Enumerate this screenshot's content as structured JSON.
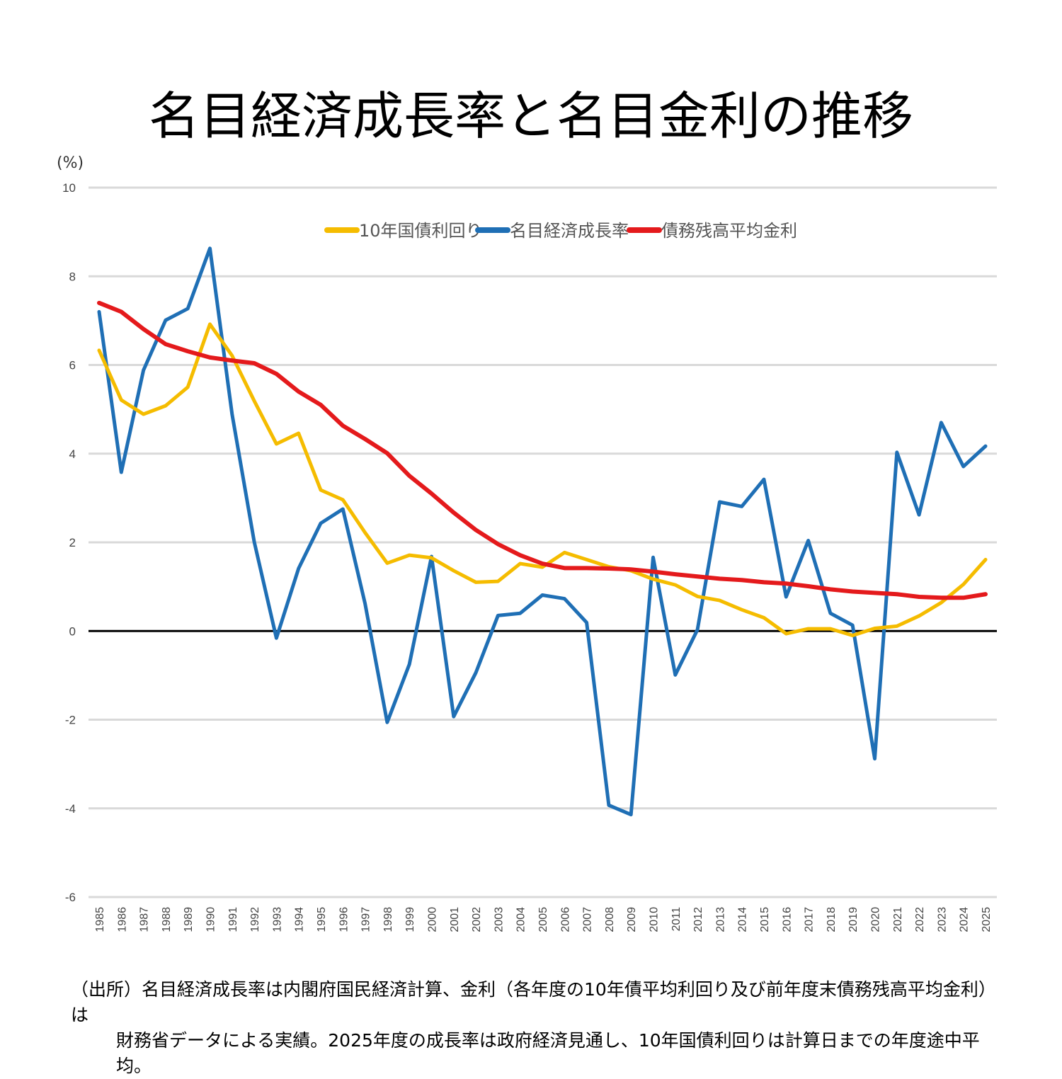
{
  "chart_data": {
    "type": "line",
    "title": "名目経済成長率と名目金利の推移",
    "ylabel": "(%)",
    "ylim": [
      -6,
      10
    ],
    "yticks": [
      10,
      8,
      6,
      4,
      2,
      0,
      -2,
      -4,
      -6
    ],
    "ytick_labels": [
      "10",
      "8",
      "6",
      "4",
      "2",
      "0",
      "-2",
      "-4",
      "-6"
    ],
    "grid": true,
    "legend": "top-center",
    "x": [
      "1985",
      "1986",
      "1987",
      "1988",
      "1989",
      "1990",
      "1991",
      "1992",
      "1993",
      "1994",
      "1995",
      "1996",
      "1997",
      "1998",
      "1999",
      "2000",
      "2001",
      "2002",
      "2003",
      "2004",
      "2005",
      "2006",
      "2007",
      "2008",
      "2009",
      "2010",
      "2011",
      "2012",
      "2013",
      "2014",
      "2015",
      "2016",
      "2017",
      "2018",
      "2019",
      "2020",
      "2021",
      "2022",
      "2023",
      "2024",
      "2025"
    ],
    "series": [
      {
        "name": "10年国債利回り",
        "color": "#F5BC00",
        "values": [
          6.33,
          5.21,
          4.89,
          5.08,
          5.5,
          6.92,
          6.21,
          5.19,
          4.22,
          4.46,
          3.18,
          2.96,
          2.22,
          1.53,
          1.71,
          1.65,
          1.36,
          1.1,
          1.12,
          1.52,
          1.44,
          1.77,
          1.61,
          1.45,
          1.36,
          1.17,
          1.04,
          0.78,
          0.69,
          0.48,
          0.3,
          -0.06,
          0.05,
          0.05,
          -0.1,
          0.06,
          0.11,
          0.34,
          0.64,
          1.05,
          1.61
        ]
      },
      {
        "name": "名目経済成長率",
        "color": "#1F6FB5",
        "values": [
          7.2,
          3.58,
          5.88,
          7.01,
          7.27,
          8.63,
          4.89,
          2.01,
          -0.16,
          1.41,
          2.43,
          2.75,
          0.62,
          -2.06,
          -0.75,
          1.68,
          -1.93,
          -0.94,
          0.35,
          0.4,
          0.81,
          0.73,
          0.19,
          -3.93,
          -4.14,
          1.66,
          -0.99,
          0.03,
          2.91,
          2.81,
          3.42,
          0.77,
          2.04,
          0.4,
          0.13,
          -2.88,
          4.03,
          2.62,
          4.7,
          3.71,
          4.17
        ]
      },
      {
        "name": "債務残高平均金利",
        "color": "#E41A1C",
        "values": [
          7.4,
          7.2,
          6.81,
          6.47,
          6.31,
          6.17,
          6.1,
          6.04,
          5.8,
          5.4,
          5.1,
          4.63,
          4.33,
          4.01,
          3.5,
          3.1,
          2.67,
          2.28,
          1.96,
          1.71,
          1.52,
          1.42,
          1.42,
          1.41,
          1.39,
          1.34,
          1.28,
          1.23,
          1.18,
          1.15,
          1.1,
          1.07,
          1.01,
          0.94,
          0.89,
          0.86,
          0.83,
          0.77,
          0.75,
          0.75,
          0.83
        ]
      }
    ]
  },
  "note": {
    "line1": "（出所）名目経済成長率は内閣府国民経済計算、金利（各年度の10年債平均利回り及び前年度末債務残高平均金利）は",
    "line2": "財務省データによる実績。2025年度の成長率は政府経済見通し、10年国債利回りは計算日までの年度途中平均。"
  }
}
